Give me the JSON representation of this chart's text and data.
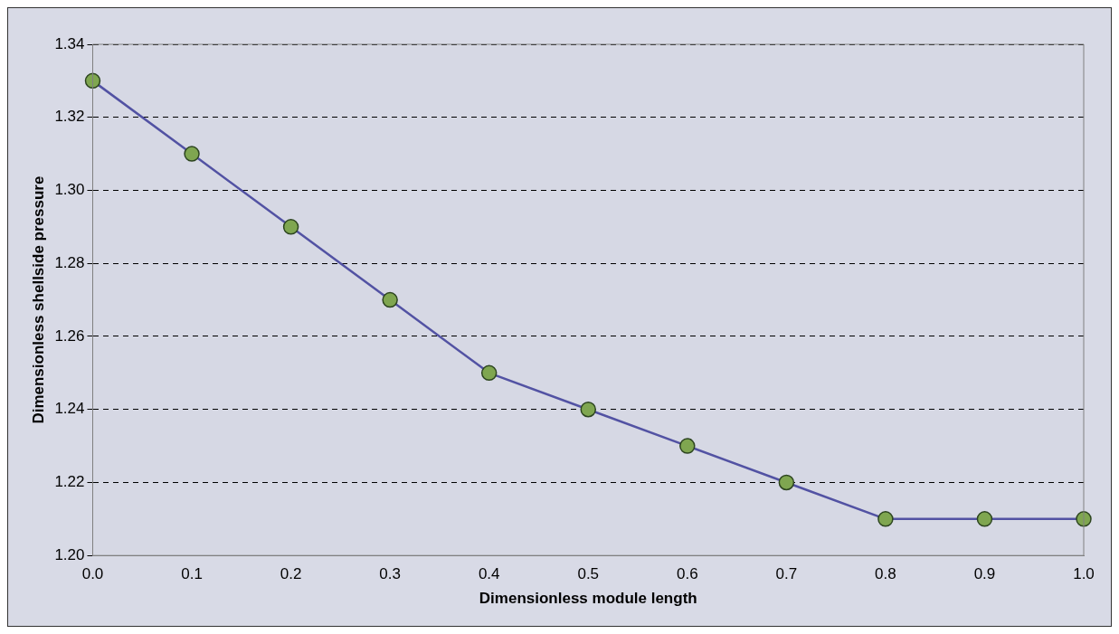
{
  "chart_data": {
    "type": "line",
    "xlabel": "Dimensionless module length",
    "ylabel": "Dimensionless shellside pressure",
    "categories": [
      "0.0",
      "0.1",
      "0.2",
      "0.3",
      "0.4",
      "0.5",
      "0.6",
      "0.7",
      "0.8",
      "0.9",
      "1.0"
    ],
    "series": [
      {
        "color": "#5252a3",
        "values": [
          1.33,
          1.31,
          1.29,
          1.27,
          1.25,
          1.24,
          1.23,
          1.22,
          1.21,
          1.21,
          1.21
        ]
      }
    ],
    "ylim": [
      1.2,
      1.34
    ],
    "yticks": [
      {
        "value": 1.2,
        "label": "1.20"
      },
      {
        "value": 1.22,
        "label": "1.22"
      },
      {
        "value": 1.24,
        "label": "1.24"
      },
      {
        "value": 1.26,
        "label": "1.26"
      },
      {
        "value": 1.28,
        "label": "1.28"
      },
      {
        "value": 1.3,
        "label": "1.30"
      },
      {
        "value": 1.32,
        "label": "1.32"
      },
      {
        "value": 1.34,
        "label": "1.34"
      }
    ],
    "grid": "y",
    "legend": false,
    "marker": "circle",
    "line_style": "solid"
  }
}
